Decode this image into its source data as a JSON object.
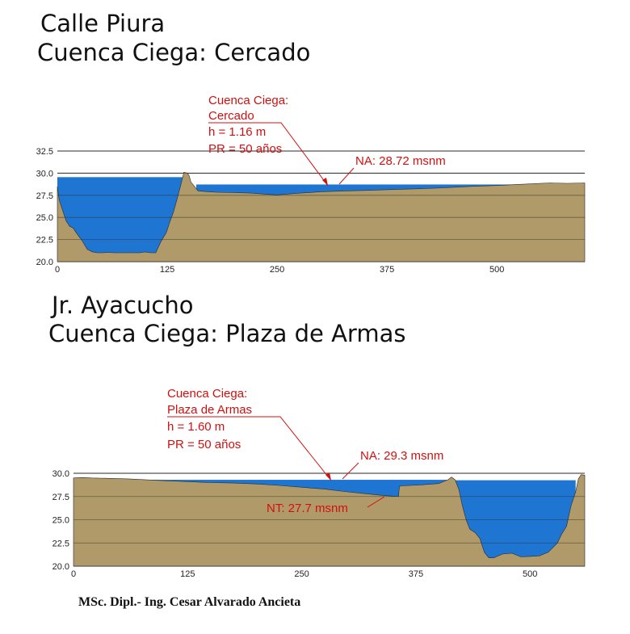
{
  "sections": [
    {
      "title_line1": "Calle Piura",
      "title_line2": "Cuenca Ciega: Cercado",
      "annotation": {
        "line1": "Cuenca Ciega:",
        "line2": "Cercado",
        "line3": "h =  1.16 m",
        "line4": "PR = 50 años"
      },
      "na_label": "NA: 28.72 msnm"
    },
    {
      "title_line1": "Jr. Ayacucho",
      "title_line2": "Cuenca Ciega: Plaza de Armas",
      "annotation": {
        "line1": "Cuenca Ciega:",
        "line2": "Plaza de Armas",
        "line3": "h = 1.60 m",
        "line4": "PR = 50 años"
      },
      "na_label": "NA: 29.3 msnm",
      "nt_label": "NT: 27.7 msnm"
    }
  ],
  "credit": "MSc. Dipl.- Ing. Cesar Alvarado Ancieta",
  "colors": {
    "terrain": "#b09a69",
    "water": "#1f76d2",
    "annotation": "#d01010",
    "grid": "#2a2a2a"
  },
  "chart_data": [
    {
      "type": "area",
      "title": "Cuenca Ciega: Cercado",
      "xlabel": "",
      "ylabel": "",
      "xlim": [
        0,
        600
      ],
      "ylim": [
        20,
        32.5
      ],
      "x_ticks": [
        "0",
        "125",
        "250",
        "375",
        "500"
      ],
      "y_ticks": [
        "32.5",
        "30.0",
        "27.5",
        "25.0",
        "22.5",
        "20.0"
      ],
      "series": [
        {
          "x": [
            0,
            2,
            6,
            10,
            14,
            18,
            22,
            28,
            34,
            40,
            46,
            52,
            58,
            64,
            70,
            76,
            82,
            88,
            94,
            100,
            106,
            112,
            118,
            124,
            128,
            132,
            136,
            140,
            144,
            148,
            150,
            152,
            156,
            160,
            166,
            172,
            180,
            200,
            220,
            240,
            250,
            270,
            300,
            330,
            350,
            380,
            400,
            430,
            450,
            470,
            500,
            520,
            540,
            560,
            580,
            600
          ],
          "y": [
            28.5,
            27.0,
            25.8,
            24.6,
            24.0,
            23.8,
            23.2,
            22.4,
            21.4,
            21.1,
            21.0,
            21.0,
            21.05,
            21.0,
            21.0,
            21.0,
            21.0,
            21.0,
            21.0,
            21.1,
            21.0,
            21.0,
            22.3,
            23.3,
            24.5,
            25.6,
            27.0,
            28.5,
            30.1,
            30.0,
            29.7,
            29.0,
            28.5,
            28.0,
            27.95,
            27.9,
            27.85,
            27.8,
            27.75,
            27.6,
            27.55,
            27.7,
            27.9,
            28.0,
            28.05,
            28.15,
            28.2,
            28.3,
            28.4,
            28.5,
            28.6,
            28.7,
            28.8,
            28.9,
            28.85,
            28.9
          ],
          "name": ""
        }
      ],
      "water": [
        {
          "x_start": 0,
          "x_end": 147,
          "level": 29.55
        },
        {
          "x_start": 158,
          "x_end": 600,
          "level": 28.72
        }
      ]
    },
    {
      "type": "area",
      "title": "Cuenca Ciega: Plaza de Armas",
      "xlabel": "",
      "ylabel": "",
      "xlim": [
        0,
        560
      ],
      "ylim": [
        20,
        30
      ],
      "x_ticks": [
        "0",
        "125",
        "250",
        "375",
        "500"
      ],
      "y_ticks": [
        "30.0",
        "27.5",
        "25.0",
        "22.5",
        "20.0"
      ],
      "series": [
        {
          "x": [
            0,
            10,
            20,
            40,
            60,
            80,
            100,
            125,
            150,
            175,
            200,
            225,
            250,
            275,
            300,
            320,
            340,
            356,
            357,
            360,
            380,
            400,
            410,
            414,
            418,
            422,
            426,
            430,
            434,
            440,
            445,
            450,
            455,
            460,
            470,
            480,
            490,
            500,
            510,
            520,
            530,
            535,
            540,
            545,
            550,
            553,
            556,
            560
          ],
          "y": [
            29.5,
            29.55,
            29.5,
            29.45,
            29.4,
            29.3,
            29.2,
            29.1,
            29.0,
            28.95,
            28.85,
            28.7,
            28.5,
            28.3,
            28.0,
            27.8,
            27.6,
            27.5,
            28.6,
            28.65,
            28.75,
            28.9,
            29.3,
            29.6,
            29.3,
            28.3,
            26.5,
            25.0,
            24.0,
            23.6,
            23.0,
            21.5,
            20.9,
            20.9,
            21.3,
            21.4,
            21.0,
            21.05,
            21.1,
            21.5,
            22.5,
            23.5,
            24.3,
            26.5,
            28.0,
            29.4,
            29.85,
            29.8
          ],
          "name": ""
        }
      ],
      "water": [
        {
          "x_start": 0,
          "x_end": 412,
          "level": 29.3
        },
        {
          "x_start": 418,
          "x_end": 550,
          "level": 29.25
        }
      ]
    }
  ]
}
